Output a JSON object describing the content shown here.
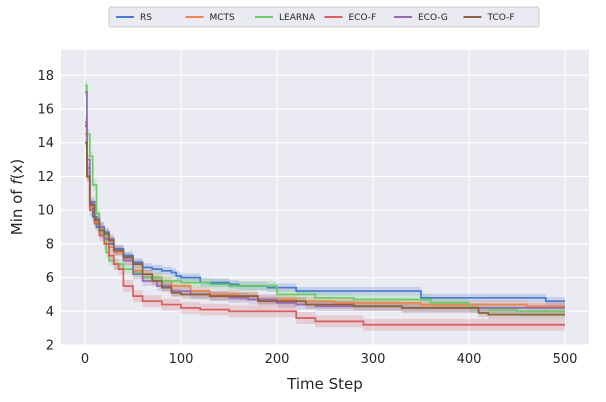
{
  "chart_data": {
    "type": "line",
    "xlabel": "Time Step",
    "ylabel": "Min of f(x)",
    "xlim": [
      -25,
      525
    ],
    "ylim": [
      2,
      19.5
    ],
    "xticks": [
      0,
      100,
      200,
      300,
      400,
      500
    ],
    "yticks": [
      2,
      4,
      6,
      8,
      10,
      12,
      14,
      16,
      18
    ],
    "grid": true,
    "legend_position": "top-center",
    "series": [
      {
        "name": "RS",
        "color": "#4878d0",
        "band": 0.25,
        "points": [
          [
            0,
            15.0
          ],
          [
            2,
            12.5
          ],
          [
            5,
            10.4
          ],
          [
            8,
            9.6
          ],
          [
            12,
            9.0
          ],
          [
            20,
            8.7
          ],
          [
            25,
            8.0
          ],
          [
            30,
            7.7
          ],
          [
            40,
            7.3
          ],
          [
            50,
            6.9
          ],
          [
            60,
            6.6
          ],
          [
            70,
            6.5
          ],
          [
            80,
            6.4
          ],
          [
            90,
            6.3
          ],
          [
            95,
            6.1
          ],
          [
            100,
            6.0
          ],
          [
            115,
            6.0
          ],
          [
            120,
            5.7
          ],
          [
            150,
            5.6
          ],
          [
            160,
            5.5
          ],
          [
            190,
            5.4
          ],
          [
            220,
            5.2
          ],
          [
            260,
            5.2
          ],
          [
            300,
            5.2
          ],
          [
            350,
            4.8
          ],
          [
            420,
            4.8
          ],
          [
            480,
            4.6
          ],
          [
            500,
            4.6
          ]
        ]
      },
      {
        "name": "MCTS",
        "color": "#ee854a",
        "band": 0.25,
        "points": [
          [
            0,
            14.5
          ],
          [
            2,
            12.0
          ],
          [
            5,
            10.2
          ],
          [
            10,
            9.3
          ],
          [
            15,
            8.6
          ],
          [
            20,
            8.4
          ],
          [
            25,
            7.8
          ],
          [
            30,
            7.5
          ],
          [
            40,
            7.0
          ],
          [
            50,
            6.4
          ],
          [
            60,
            6.2
          ],
          [
            70,
            6.0
          ],
          [
            80,
            5.8
          ],
          [
            90,
            5.5
          ],
          [
            110,
            5.2
          ],
          [
            130,
            5.0
          ],
          [
            160,
            4.9
          ],
          [
            180,
            4.7
          ],
          [
            220,
            4.6
          ],
          [
            260,
            4.5
          ],
          [
            300,
            4.5
          ],
          [
            350,
            4.4
          ],
          [
            420,
            4.4
          ],
          [
            460,
            4.3
          ],
          [
            500,
            4.3
          ]
        ]
      },
      {
        "name": "LEARNA",
        "color": "#6acc64",
        "band": 0.3,
        "points": [
          [
            0,
            17.4
          ],
          [
            2,
            14.5
          ],
          [
            5,
            13.2
          ],
          [
            8,
            11.5
          ],
          [
            12,
            9.8
          ],
          [
            15,
            9.0
          ],
          [
            18,
            8.5
          ],
          [
            22,
            7.5
          ],
          [
            25,
            7.0
          ],
          [
            30,
            6.8
          ],
          [
            40,
            6.5
          ],
          [
            50,
            6.3
          ],
          [
            60,
            6.0
          ],
          [
            80,
            5.8
          ],
          [
            100,
            5.7
          ],
          [
            130,
            5.6
          ],
          [
            150,
            5.5
          ],
          [
            200,
            5.0
          ],
          [
            240,
            4.8
          ],
          [
            280,
            4.7
          ],
          [
            300,
            4.7
          ],
          [
            360,
            4.5
          ],
          [
            400,
            4.2
          ],
          [
            420,
            4.1
          ],
          [
            450,
            4.0
          ],
          [
            500,
            4.0
          ]
        ]
      },
      {
        "name": "ECO-F",
        "color": "#d65f5f",
        "band": 0.35,
        "points": [
          [
            0,
            15.2
          ],
          [
            2,
            12.0
          ],
          [
            5,
            10.0
          ],
          [
            10,
            9.2
          ],
          [
            15,
            8.5
          ],
          [
            20,
            8.0
          ],
          [
            25,
            7.3
          ],
          [
            30,
            6.8
          ],
          [
            35,
            6.5
          ],
          [
            40,
            5.5
          ],
          [
            50,
            4.9
          ],
          [
            60,
            4.6
          ],
          [
            80,
            4.4
          ],
          [
            100,
            4.2
          ],
          [
            120,
            4.1
          ],
          [
            150,
            4.0
          ],
          [
            180,
            4.0
          ],
          [
            220,
            3.6
          ],
          [
            240,
            3.4
          ],
          [
            290,
            3.2
          ],
          [
            320,
            3.2
          ],
          [
            400,
            3.2
          ],
          [
            500,
            3.2
          ]
        ]
      },
      {
        "name": "ECO-G",
        "color": "#956cb4",
        "band": 0.3,
        "points": [
          [
            0,
            17.0
          ],
          [
            2,
            13.0
          ],
          [
            5,
            10.5
          ],
          [
            10,
            9.5
          ],
          [
            15,
            9.0
          ],
          [
            20,
            8.3
          ],
          [
            30,
            7.6
          ],
          [
            40,
            7.0
          ],
          [
            50,
            6.2
          ],
          [
            60,
            5.8
          ],
          [
            75,
            5.5
          ],
          [
            90,
            5.2
          ],
          [
            110,
            5.0
          ],
          [
            130,
            4.9
          ],
          [
            150,
            4.8
          ],
          [
            170,
            4.7
          ],
          [
            200,
            4.5
          ],
          [
            220,
            4.4
          ],
          [
            240,
            4.3
          ],
          [
            300,
            4.3
          ],
          [
            330,
            4.2
          ],
          [
            380,
            4.2
          ],
          [
            420,
            4.2
          ],
          [
            450,
            4.2
          ],
          [
            500,
            4.2
          ]
        ]
      },
      {
        "name": "TCO-F",
        "color": "#8c613c",
        "band": 0.25,
        "points": [
          [
            0,
            14.0
          ],
          [
            2,
            12.0
          ],
          [
            5,
            10.3
          ],
          [
            10,
            9.4
          ],
          [
            15,
            8.8
          ],
          [
            20,
            8.6
          ],
          [
            25,
            8.2
          ],
          [
            30,
            7.6
          ],
          [
            40,
            7.2
          ],
          [
            50,
            6.8
          ],
          [
            60,
            6.2
          ],
          [
            70,
            5.8
          ],
          [
            80,
            5.4
          ],
          [
            90,
            5.1
          ],
          [
            100,
            5.0
          ],
          [
            130,
            4.9
          ],
          [
            180,
            4.6
          ],
          [
            230,
            4.4
          ],
          [
            280,
            4.3
          ],
          [
            330,
            4.2
          ],
          [
            380,
            4.2
          ],
          [
            410,
            3.9
          ],
          [
            420,
            3.8
          ],
          [
            500,
            3.8
          ]
        ]
      }
    ]
  }
}
